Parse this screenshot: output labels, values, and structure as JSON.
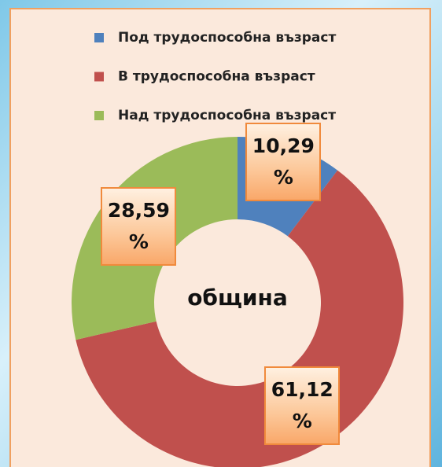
{
  "chart_data": {
    "type": "donut",
    "categories": [
      "Под трудоспособна възраст",
      "В трудоспособна възраст",
      "Над трудоспособна възраст"
    ],
    "values": [
      10.29,
      61.12,
      28.59
    ],
    "value_labels": [
      "10,29 %",
      "61,12 %",
      "28,59 %"
    ],
    "colors": [
      "#4f81bd",
      "#c0504d",
      "#9bbb59"
    ],
    "center_label": "община",
    "legend": "top"
  }
}
